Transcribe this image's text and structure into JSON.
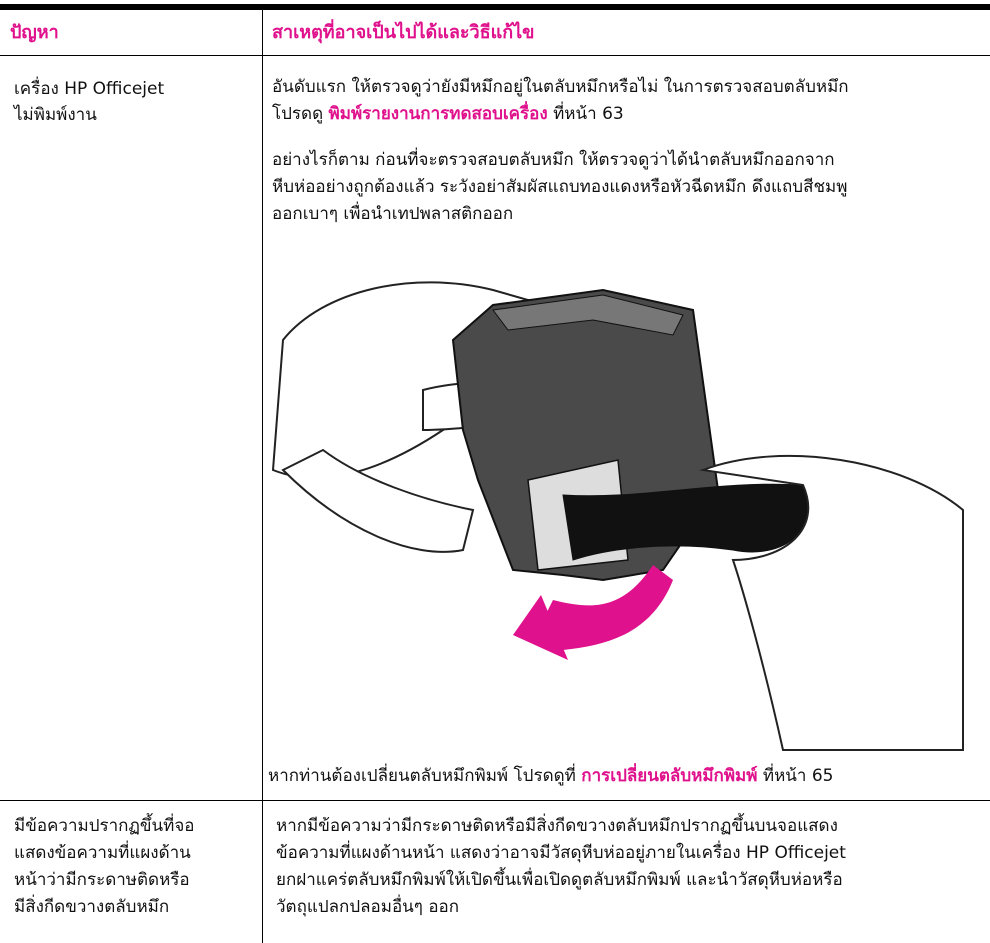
{
  "table": {
    "header": [
      "ปัญหา",
      "สาเหตุที่อาจเป็นไปได้และวิธีแก้ไข"
    ],
    "rows": [
      {
        "problem": [
          "เครื่อง HP Officejet",
          "ไม่พิมพ์งาน"
        ],
        "solution": {
          "para1": [
            "อันดับแรก ให้ตรวจดูว่ายังมีหมึกอยู่ในตลับหมึกหรือไม่ ในการตรวจสอบตลับหมึก",
            "โปรดดู ",
            "พิมพ์รายงานการทดสอบเครื่อง",
            " ที่หน้า 63"
          ],
          "para2": [
            "อย่างไรก็ตาม ก่อนที่จะตรวจสอบตลับหมึก ให้ตรวจดูว่าได้นำตลับหมึกออกจาก",
            "หีบห่ออย่างถูกต้องแล้ว ระวังอย่าสัมผัสแถบทองแดงหรือหัวฉีดหมึก ดึงแถบสีชมพู",
            "ออกเบาๆ เพื่อนำเทปพลาสติกออก"
          ],
          "caption": [
            "หากท่านต้องเปลี่ยนตลับหมึกพิมพ์ โปรดดูที่ ",
            "การเปลี่ยนตลับหมึกพิมพ์",
            " ที่หน้า 65"
          ]
        }
      },
      {
        "problem": [
          "มีข้อความปรากฏขึ้นที่จอ",
          "แสดงข้อความที่แผงด้าน",
          "หน้าว่ามีกระดาษติดหรือ",
          "มีสิ่งกีดขวางตลับหมึก"
        ],
        "solution": {
          "para1": [
            "หากมีข้อความว่ามีกระดาษติดหรือมีสิ่งกีดขวางตลับหมึกปรากฏขึ้นบนจอแสดง",
            "ข้อความที่แผงด้านหน้า แสดงว่าอาจมีวัสดุหีบห่ออยู่ภายในเครื่อง HP Officejet",
            "ยกฝาแคร่ตลับหมึกพิมพ์ให้เปิดขึ้นเพื่อเปิดดูตลับหมึกพิมพ์ และนำวัสดุหีบห่อหรือ",
            "วัตถุแปลกปลอมอื่นๆ ออก"
          ]
        }
      }
    ]
  }
}
